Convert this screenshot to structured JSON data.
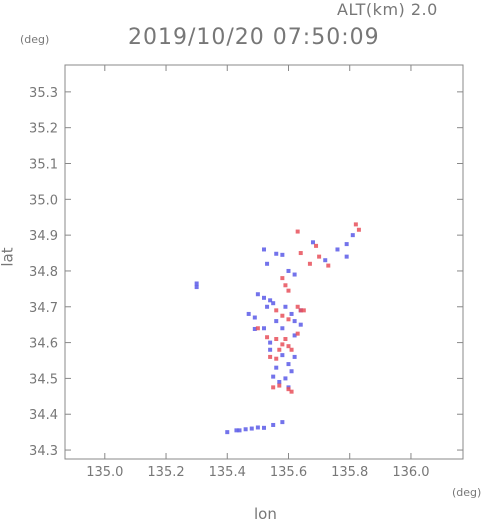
{
  "header": {
    "alt_label": "ALT(km)  2.0",
    "timestamp": "2019/10/20 07:50:09"
  },
  "chart_data": {
    "type": "scatter",
    "xlabel": "lon",
    "ylabel": "lat",
    "x_unit": "(deg)",
    "y_unit": "(deg)",
    "xlim": [
      134.87,
      136.17
    ],
    "ylim": [
      34.275,
      35.375
    ],
    "xticks": [
      135.0,
      135.2,
      135.4,
      135.6,
      135.8,
      136.0
    ],
    "xtick_labels": [
      "135.0",
      "135.2",
      "135.4",
      "135.6",
      "135.8",
      "136.0"
    ],
    "yticks": [
      34.3,
      34.4,
      34.5,
      34.6,
      34.7,
      34.8,
      34.9,
      35.0,
      35.1,
      35.2,
      35.3
    ],
    "ytick_labels": [
      "34.3",
      "34.4",
      "34.5",
      "34.6",
      "34.7",
      "34.8",
      "34.9",
      "35.0",
      "35.1",
      "35.2",
      "35.3"
    ],
    "grid": false,
    "colors": {
      "positive": "#e8505a",
      "negative": "#5a5ae8",
      "axis": "#888888"
    },
    "series": [
      {
        "values": [
          [
            135.3,
            34.765
          ],
          [
            135.3,
            34.755
          ],
          [
            135.52,
            34.86
          ],
          [
            135.56,
            34.848
          ],
          [
            135.58,
            34.845
          ],
          [
            135.53,
            34.82
          ],
          [
            135.6,
            34.8
          ],
          [
            135.62,
            34.79
          ],
          [
            135.68,
            34.88
          ],
          [
            135.72,
            34.83
          ],
          [
            135.76,
            34.86
          ],
          [
            135.79,
            34.875
          ],
          [
            135.81,
            34.9
          ],
          [
            135.79,
            34.84
          ],
          [
            135.5,
            34.735
          ],
          [
            135.52,
            34.725
          ],
          [
            135.54,
            34.718
          ],
          [
            135.55,
            34.71
          ],
          [
            135.59,
            34.7
          ],
          [
            135.47,
            34.68
          ],
          [
            135.49,
            34.67
          ],
          [
            135.52,
            34.64
          ],
          [
            135.49,
            34.638
          ],
          [
            135.56,
            34.66
          ],
          [
            135.58,
            34.64
          ],
          [
            135.62,
            34.66
          ],
          [
            135.64,
            34.65
          ],
          [
            135.62,
            34.62
          ],
          [
            135.58,
            34.565
          ],
          [
            135.54,
            34.58
          ],
          [
            135.56,
            34.53
          ],
          [
            135.6,
            34.54
          ],
          [
            135.62,
            34.56
          ],
          [
            135.55,
            34.505
          ],
          [
            135.57,
            34.49
          ],
          [
            135.59,
            34.5
          ],
          [
            135.61,
            34.52
          ],
          [
            135.4,
            34.35
          ],
          [
            135.44,
            34.355
          ],
          [
            135.48,
            34.36
          ],
          [
            135.52,
            34.362
          ],
          [
            135.55,
            34.37
          ],
          [
            135.58,
            34.378
          ],
          [
            135.53,
            34.7
          ],
          [
            135.64,
            34.69
          ],
          [
            135.43,
            34.355
          ],
          [
            135.46,
            34.358
          ],
          [
            135.5,
            34.363
          ],
          [
            135.6,
            34.475
          ],
          [
            135.54,
            34.6
          ],
          [
            135.61,
            34.68
          ]
        ]
      },
      {
        "values": [
          [
            135.63,
            34.91
          ],
          [
            135.69,
            34.87
          ],
          [
            135.67,
            34.82
          ],
          [
            135.64,
            34.85
          ],
          [
            135.7,
            34.84
          ],
          [
            135.73,
            34.815
          ],
          [
            135.82,
            34.93
          ],
          [
            135.83,
            34.915
          ],
          [
            135.59,
            34.76
          ],
          [
            135.6,
            34.745
          ],
          [
            135.58,
            34.78
          ],
          [
            135.56,
            34.69
          ],
          [
            135.58,
            34.675
          ],
          [
            135.6,
            34.665
          ],
          [
            135.63,
            34.7
          ],
          [
            135.65,
            34.69
          ],
          [
            135.53,
            34.615
          ],
          [
            135.56,
            34.61
          ],
          [
            135.58,
            34.595
          ],
          [
            135.6,
            34.59
          ],
          [
            135.57,
            34.58
          ],
          [
            135.61,
            34.58
          ],
          [
            135.6,
            34.47
          ],
          [
            135.61,
            34.463
          ],
          [
            135.55,
            34.475
          ],
          [
            135.57,
            34.48
          ],
          [
            135.54,
            34.56
          ],
          [
            135.5,
            34.64
          ],
          [
            135.63,
            34.625
          ],
          [
            135.64,
            34.69
          ],
          [
            135.56,
            34.555
          ],
          [
            135.59,
            34.61
          ]
        ]
      }
    ]
  }
}
